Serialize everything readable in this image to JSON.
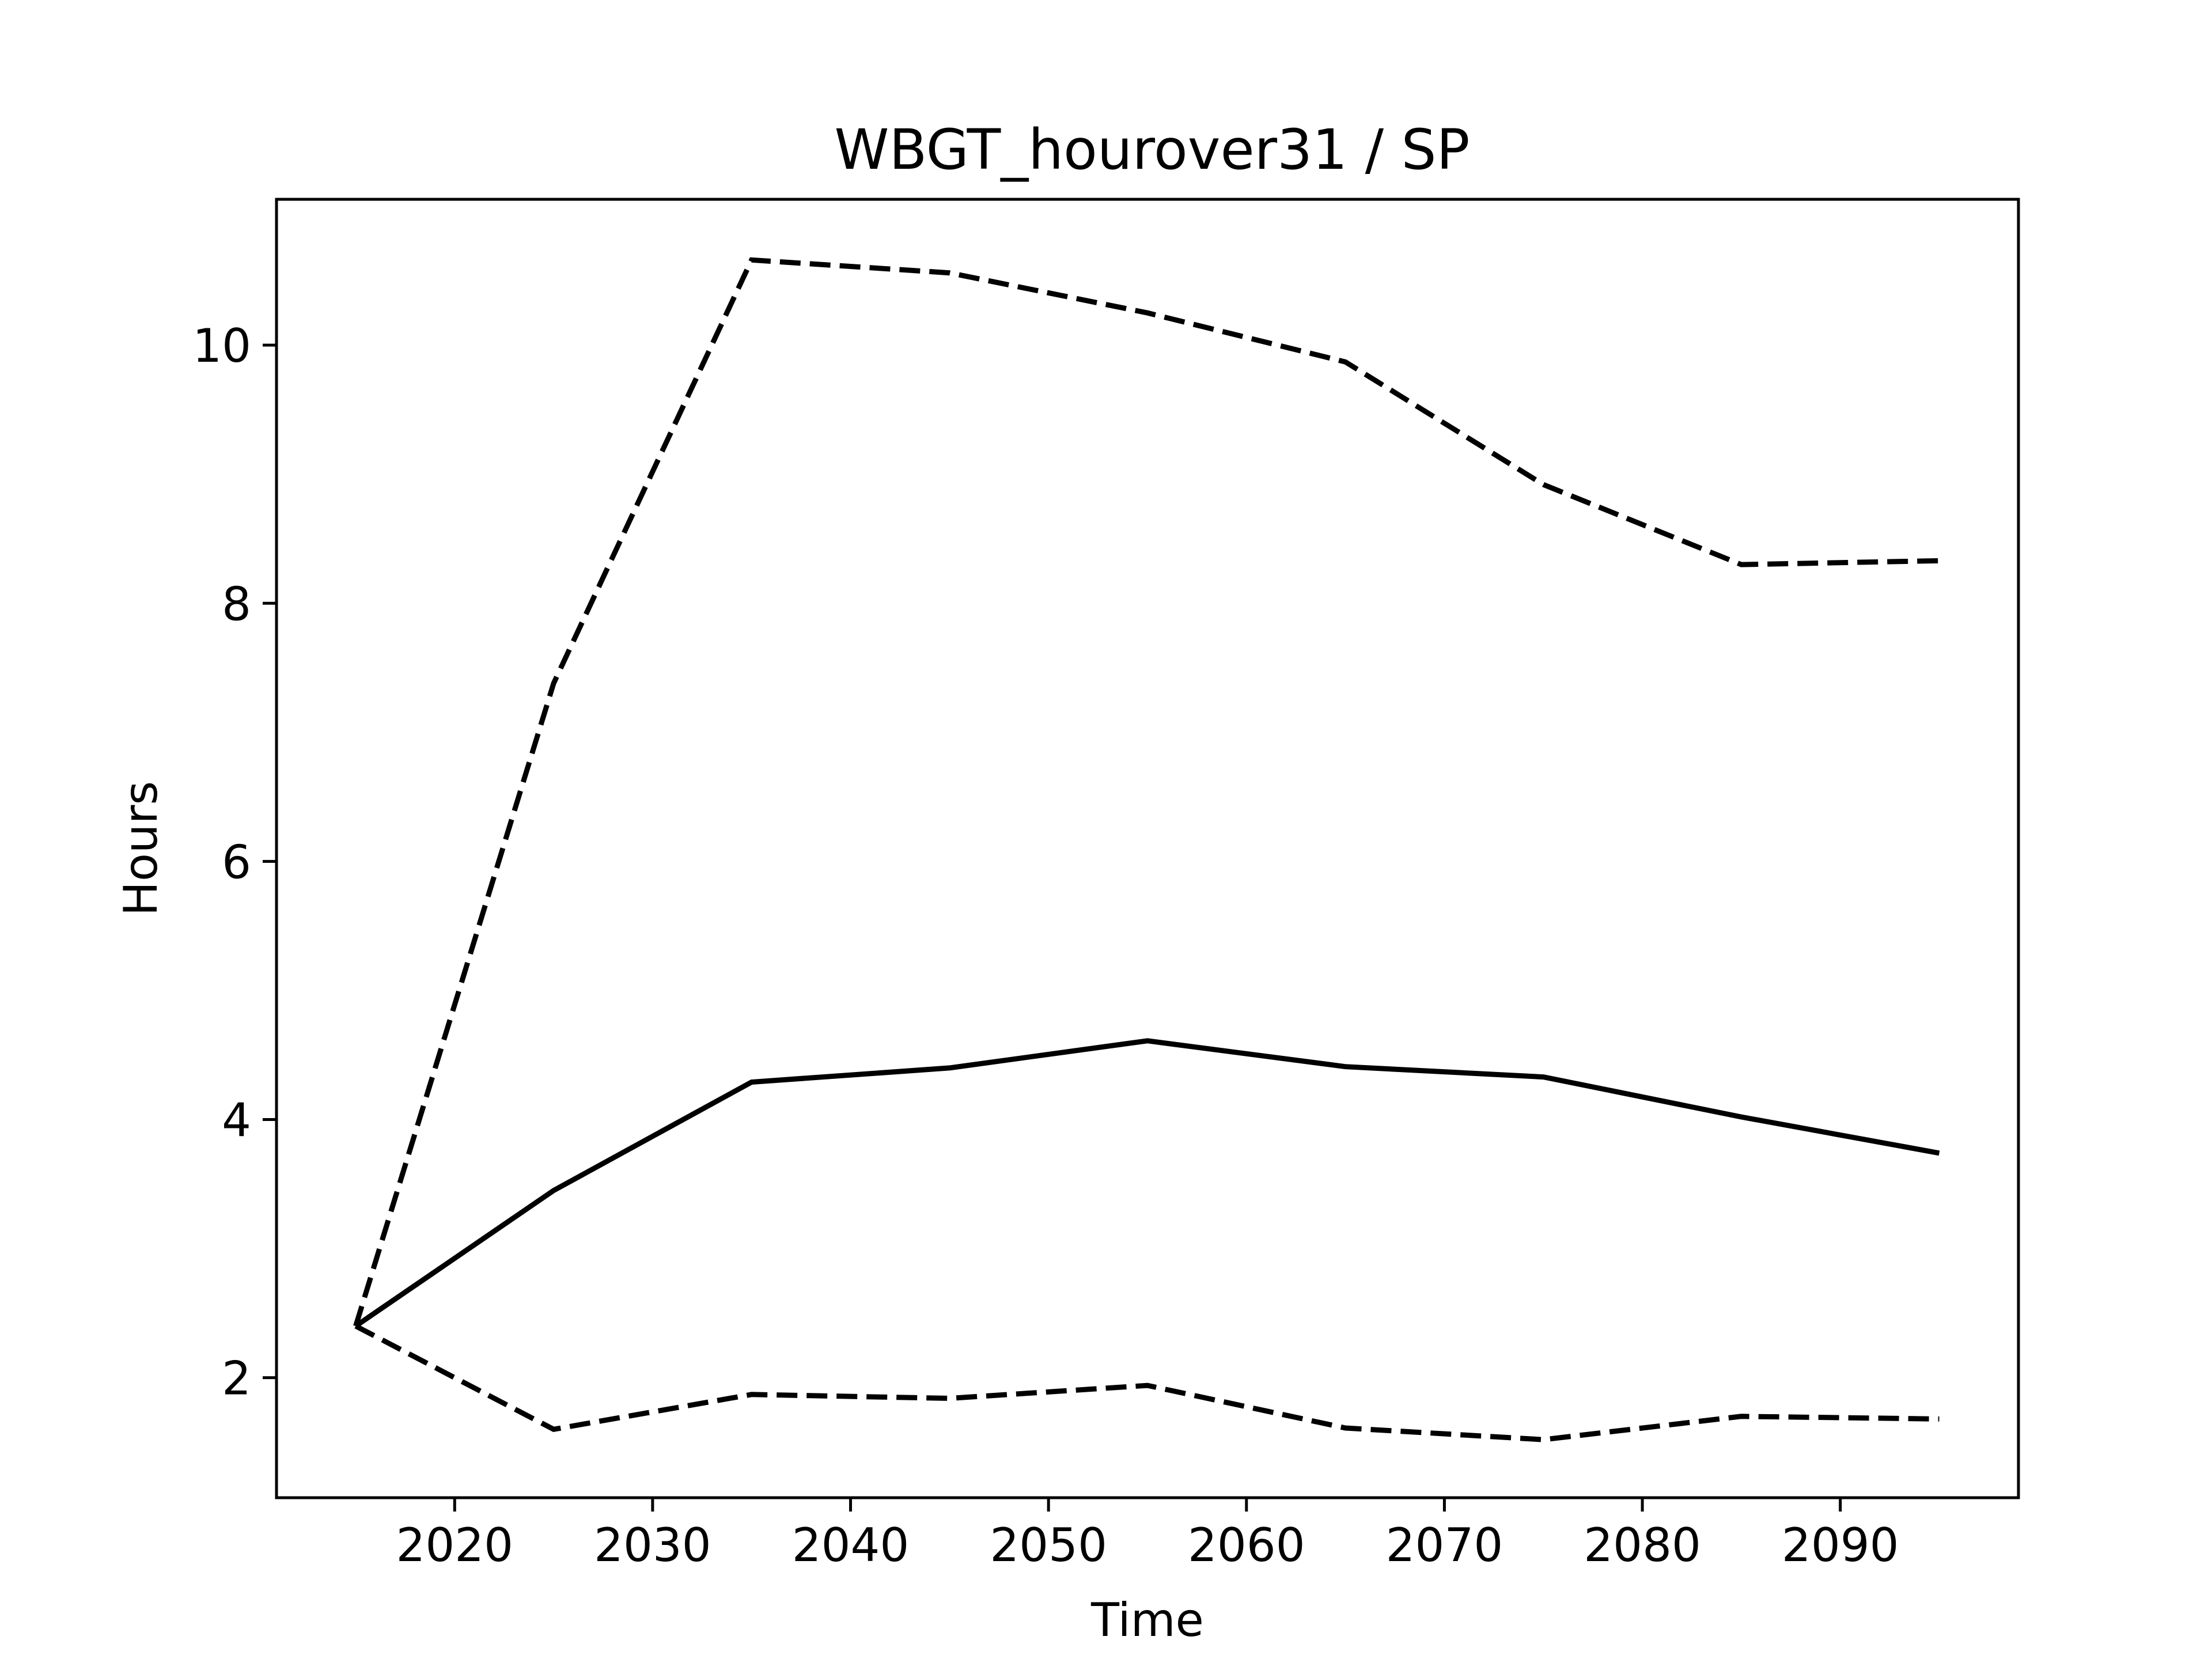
{
  "chart_data": {
    "type": "line",
    "title": "WBGT_hourover31 / SP",
    "xlabel": "Time",
    "ylabel": "Hours",
    "xlim": [
      2011,
      2099
    ],
    "ylim": [
      1.07,
      11.13
    ],
    "xticks": [
      2020,
      2030,
      2040,
      2050,
      2060,
      2070,
      2080,
      2090
    ],
    "yticks": [
      2,
      4,
      6,
      8,
      10
    ],
    "grid": false,
    "legend": "none",
    "x": [
      2015,
      2025,
      2035,
      2045,
      2055,
      2065,
      2075,
      2085,
      2095
    ],
    "series": [
      {
        "style": "solid",
        "color": "#000000",
        "values": [
          2.4,
          3.45,
          4.29,
          4.4,
          4.61,
          4.41,
          4.33,
          4.02,
          3.74
        ]
      },
      {
        "style": "dashed",
        "color": "#000000",
        "values": [
          2.4,
          7.38,
          10.66,
          10.56,
          10.25,
          9.87,
          8.92,
          8.3,
          8.33
        ]
      },
      {
        "style": "dashed",
        "color": "#000000",
        "values": [
          2.4,
          1.6,
          1.87,
          1.84,
          1.94,
          1.61,
          1.52,
          1.7,
          1.68
        ]
      }
    ]
  }
}
